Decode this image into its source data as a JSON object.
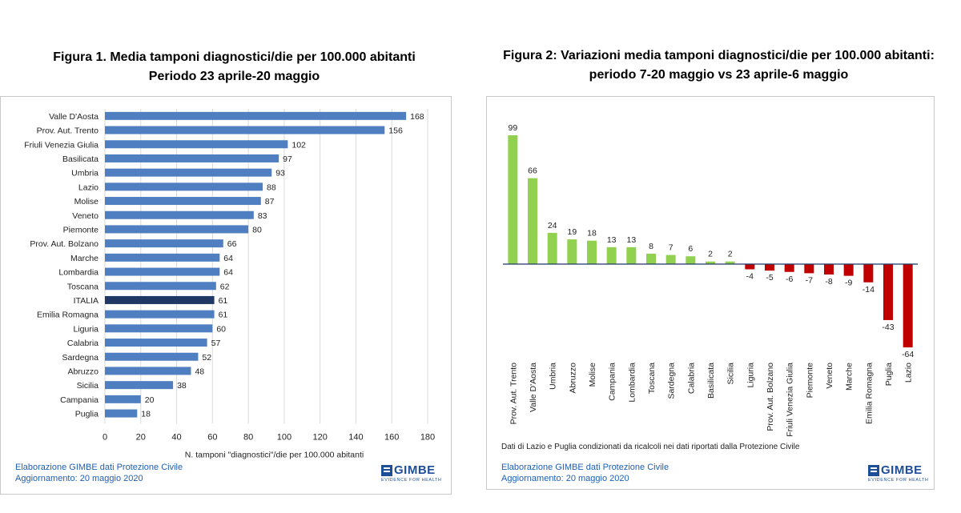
{
  "figure1": {
    "title_line1": "Figura 1. Media tamponi diagnostici/die per 100.000 abitanti",
    "title_line2": "Periodo 23 aprile-20 maggio",
    "footer_line1": "Elaborazione GIMBE dati Protezione Civile",
    "footer_line2": "Aggiornamento: 20 maggio 2020",
    "logo_text": "GIMBE",
    "logo_sub": "EVIDENCE FOR HEALTH"
  },
  "figure2": {
    "title_line1": "Figura 2: Variazioni media tamponi diagnostici/die per 100.000 abitanti:",
    "title_line2": "periodo 7-20 maggio vs 23 aprile-6 maggio",
    "note": "Dati di Lazio e Puglia condizionati da ricalcoli nei dati riportati dalla Protezione Civile",
    "footer_line1": "Elaborazione GIMBE dati Protezione Civile",
    "footer_line2": "Aggiornamento: 20 maggio 2020",
    "logo_text": "GIMBE",
    "logo_sub": "EVIDENCE FOR HEALTH"
  },
  "colors": {
    "bar_blue": "#4f7fc0",
    "bar_highlight": "#1f3864",
    "bar_green": "#92d050",
    "bar_red": "#c00000",
    "footer_blue": "#1f5fb4"
  },
  "chart_data": [
    {
      "type": "bar",
      "orientation": "horizontal",
      "categories": [
        "Valle D'Aosta",
        "Prov. Aut. Trento",
        "Friuli Venezia Giulia",
        "Basilicata",
        "Umbria",
        "Lazio",
        "Molise",
        "Veneto",
        "Piemonte",
        "Prov. Aut. Bolzano",
        "Marche",
        "Lombardia",
        "Toscana",
        "ITALIA",
        "Emilia Romagna",
        "Liguria",
        "Calabria",
        "Sardegna",
        "Abruzzo",
        "Sicilia",
        "Campania",
        "Puglia"
      ],
      "values": [
        168,
        156,
        102,
        97,
        93,
        88,
        87,
        83,
        80,
        66,
        64,
        64,
        62,
        61,
        61,
        60,
        57,
        52,
        48,
        38,
        20,
        18
      ],
      "highlight": "ITALIA",
      "xlabel": "N. tamponi \"diagnostici\"/die per 100.000 abitanti",
      "xlim": [
        0,
        180
      ],
      "xticks": [
        0,
        20,
        40,
        60,
        80,
        100,
        120,
        140,
        160,
        180
      ],
      "grid": "vertical"
    },
    {
      "type": "bar",
      "orientation": "vertical",
      "categories": [
        "Prov. Aut. Trento",
        "Valle D'Aosta",
        "Umbria",
        "Abruzzo",
        "Molise",
        "Campania",
        "Lombardia",
        "Toscana",
        "Sardegna",
        "Calabria",
        "Basilicata",
        "Sicilia",
        "Liguria",
        "Prov. Aut. Bolzano",
        "Friuli Venezia Giulia",
        "Piemonte",
        "Veneto",
        "Marche",
        "Emilia Romagna",
        "Puglia",
        "Lazio"
      ],
      "values": [
        99,
        66,
        24,
        19,
        18,
        13,
        13,
        8,
        7,
        6,
        2,
        2,
        -4,
        -5,
        -6,
        -7,
        -8,
        -9,
        -14,
        -43,
        -64
      ],
      "positive_color": "green",
      "negative_color": "red"
    }
  ]
}
